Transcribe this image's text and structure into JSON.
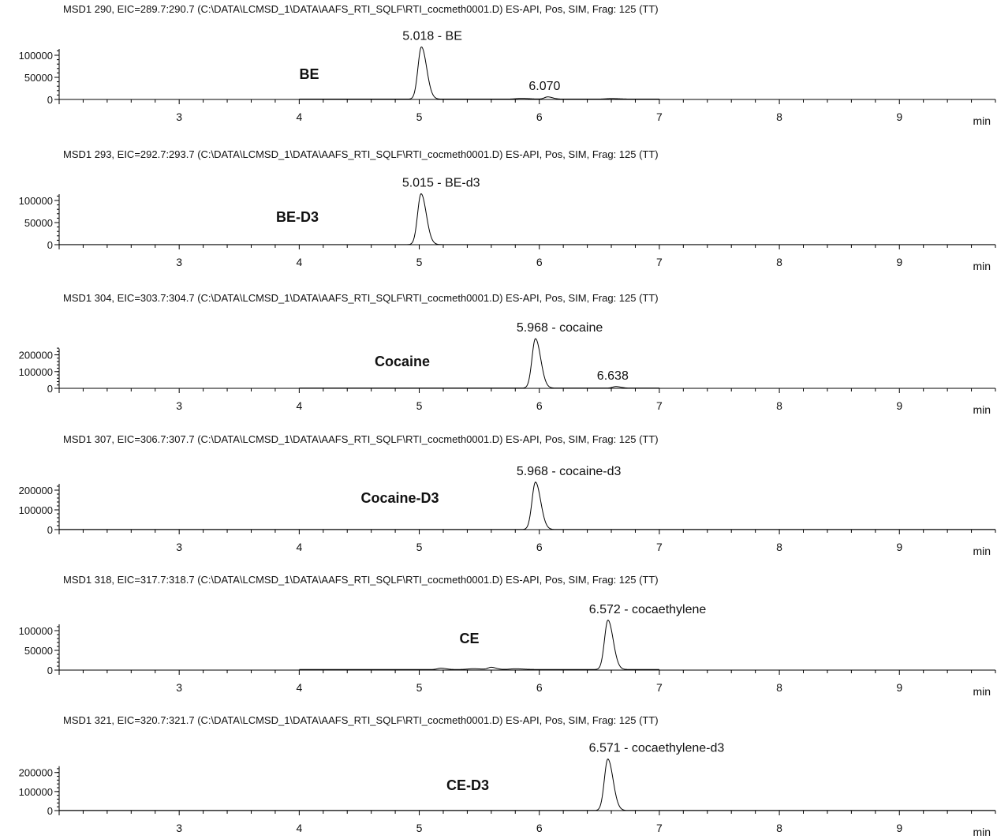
{
  "chart_data": [
    {
      "type": "line",
      "header": "MSD1 290, EIC=289.7:290.7 (C:\\DATA\\LCMSD_1\\DATA\\AAFS_RTI_SQLF\\RTI_cocmeth0001.D)   ES-API, Pos, SIM, Frag: 125 (TT)",
      "compound": "BE",
      "x_unit": "min",
      "xlim": [
        2.0,
        9.8
      ],
      "x_ticks": [
        3,
        4,
        5,
        6,
        7,
        8,
        9
      ],
      "y_ticks": [
        0,
        50000,
        100000
      ],
      "ylim": [
        0,
        125000
      ],
      "trace_range": [
        4.0,
        7.0
      ],
      "baseline": 800,
      "peaks": [
        {
          "rt": 5.018,
          "height": 118000,
          "width": 0.032,
          "label": "5.018 -  BE"
        },
        {
          "rt": 6.07,
          "height": 5000,
          "width": 0.03,
          "label": "6.070"
        },
        {
          "rt": 5.85,
          "height": 1500,
          "width": 0.05,
          "label": ""
        },
        {
          "rt": 6.6,
          "height": 1200,
          "width": 0.05,
          "label": ""
        }
      ]
    },
    {
      "type": "line",
      "header": "MSD1 293, EIC=292.7:293.7 (C:\\DATA\\LCMSD_1\\DATA\\AAFS_RTI_SQLF\\RTI_cocmeth0001.D)   ES-API, Pos, SIM, Frag: 125 (TT)",
      "compound": "BE-D3",
      "x_unit": "min",
      "xlim": [
        2.0,
        9.8
      ],
      "x_ticks": [
        3,
        4,
        5,
        6,
        7,
        8,
        9
      ],
      "y_ticks": [
        0,
        50000,
        100000
      ],
      "ylim": [
        0,
        125000
      ],
      "trace_range": [
        2.0,
        9.8
      ],
      "baseline": 300,
      "peaks": [
        {
          "rt": 5.015,
          "height": 115000,
          "width": 0.032,
          "label": "5.015 -  BE-d3"
        }
      ]
    },
    {
      "type": "line",
      "header": "MSD1 304, EIC=303.7:304.7 (C:\\DATA\\LCMSD_1\\DATA\\AAFS_RTI_SQLF\\RTI_cocmeth0001.D)   ES-API, Pos, SIM, Frag: 125 (TT)",
      "compound": "Cocaine",
      "x_unit": "min",
      "xlim": [
        2.0,
        9.8
      ],
      "x_ticks": [
        3,
        4,
        5,
        6,
        7,
        8,
        9
      ],
      "y_ticks": [
        0,
        100000,
        200000
      ],
      "ylim": [
        0,
        330000
      ],
      "trace_range": [
        4.0,
        7.0
      ],
      "baseline": 1500,
      "peaks": [
        {
          "rt": 5.968,
          "height": 295000,
          "width": 0.032,
          "label": "5.968 -  cocaine"
        },
        {
          "rt": 6.638,
          "height": 9000,
          "width": 0.03,
          "label": "6.638"
        }
      ]
    },
    {
      "type": "line",
      "header": "MSD1 307, EIC=306.7:307.7 (C:\\DATA\\LCMSD_1\\DATA\\AAFS_RTI_SQLF\\RTI_cocmeth0001.D)   ES-API, Pos, SIM, Frag: 125 (TT)",
      "compound": "Cocaine-D3",
      "x_unit": "min",
      "xlim": [
        2.0,
        9.8
      ],
      "x_ticks": [
        3,
        4,
        5,
        6,
        7,
        8,
        9
      ],
      "y_ticks": [
        0,
        100000,
        200000
      ],
      "ylim": [
        0,
        280000
      ],
      "trace_range": [
        2.0,
        9.8
      ],
      "baseline": 800,
      "peaks": [
        {
          "rt": 5.968,
          "height": 240000,
          "width": 0.032,
          "label": "5.968 -  cocaine-d3"
        }
      ]
    },
    {
      "type": "line",
      "header": "MSD1 318, EIC=317.7:318.7 (C:\\DATA\\LCMSD_1\\DATA\\AAFS_RTI_SQLF\\RTI_cocmeth0001.D)   ES-API, Pos, SIM, Frag: 125 (TT)",
      "compound": "CE",
      "x_unit": "min",
      "xlim": [
        2.0,
        9.8
      ],
      "x_ticks": [
        3,
        4,
        5,
        6,
        7,
        8,
        9
      ],
      "y_ticks": [
        0,
        50000,
        100000
      ],
      "ylim": [
        0,
        140000
      ],
      "trace_range": [
        4.0,
        7.0
      ],
      "baseline": 1500,
      "peaks": [
        {
          "rt": 6.572,
          "height": 125000,
          "width": 0.032,
          "label": "6.572 -  cocaethylene"
        },
        {
          "rt": 5.18,
          "height": 3500,
          "width": 0.03,
          "label": ""
        },
        {
          "rt": 5.6,
          "height": 5500,
          "width": 0.03,
          "label": ""
        },
        {
          "rt": 5.45,
          "height": 2000,
          "width": 0.05,
          "label": ""
        },
        {
          "rt": 5.8,
          "height": 1800,
          "width": 0.05,
          "label": ""
        }
      ]
    },
    {
      "type": "line",
      "header": "MSD1 321, EIC=320.7:321.7 (C:\\DATA\\LCMSD_1\\DATA\\AAFS_RTI_SQLF\\RTI_cocmeth0001.D)   ES-API, Pos, SIM, Frag: 125 (TT)",
      "compound": "CE-D3",
      "x_unit": "min",
      "xlim": [
        2.0,
        9.8
      ],
      "x_ticks": [
        3,
        4,
        5,
        6,
        7,
        8,
        9
      ],
      "y_ticks": [
        0,
        100000,
        200000
      ],
      "ylim": [
        0,
        290000
      ],
      "trace_range": [
        2.0,
        9.8
      ],
      "baseline": 800,
      "peaks": [
        {
          "rt": 6.571,
          "height": 270000,
          "width": 0.032,
          "label": "6.571 -  cocaethylene-d3"
        }
      ]
    }
  ]
}
